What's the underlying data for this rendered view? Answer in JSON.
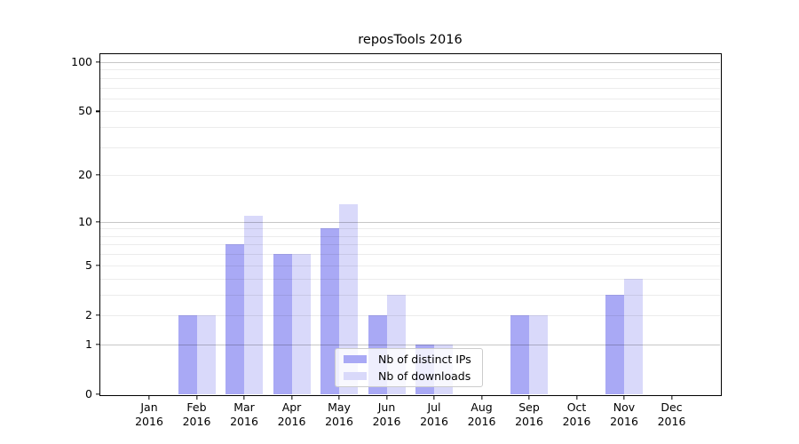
{
  "title": "reposTools 2016",
  "colors": {
    "ips_bar": "#a9a9f5",
    "downloads_bar": "#d9d9fa",
    "grid_major": "#c7c7c7",
    "grid_minor": "#ececec",
    "axis": "#000000",
    "legend_border": "#cccccc"
  },
  "chart_data": {
    "type": "bar",
    "scale": "log1p",
    "title": "reposTools 2016",
    "xlabel": "",
    "ylabel": "",
    "categories": [
      "Jan",
      "Feb",
      "Mar",
      "Apr",
      "May",
      "Jun",
      "Jul",
      "Aug",
      "Sep",
      "Oct",
      "Nov",
      "Dec"
    ],
    "year_label": "2016",
    "series": [
      {
        "name": "Nb of distinct IPs",
        "color": "#a9a9f5",
        "values": [
          0,
          2,
          7,
          6,
          9,
          2,
          1,
          0,
          2,
          0,
          3,
          0
        ]
      },
      {
        "name": "Nb of downloads",
        "color": "#d9d9fa",
        "values": [
          0,
          2,
          11,
          6,
          13,
          3,
          1,
          0,
          2,
          0,
          4,
          0
        ]
      }
    ],
    "yticks": [
      0,
      1,
      2,
      5,
      10,
      20,
      50,
      100
    ],
    "grid_major_values": [
      1,
      10,
      100
    ],
    "grid_minor_values": [
      2,
      3,
      4,
      5,
      6,
      7,
      8,
      9,
      20,
      30,
      40,
      50,
      60,
      70,
      80,
      90
    ],
    "ylim_top_log10_1p": 2.052,
    "grid": "on",
    "legend_position": "lower center inside"
  }
}
